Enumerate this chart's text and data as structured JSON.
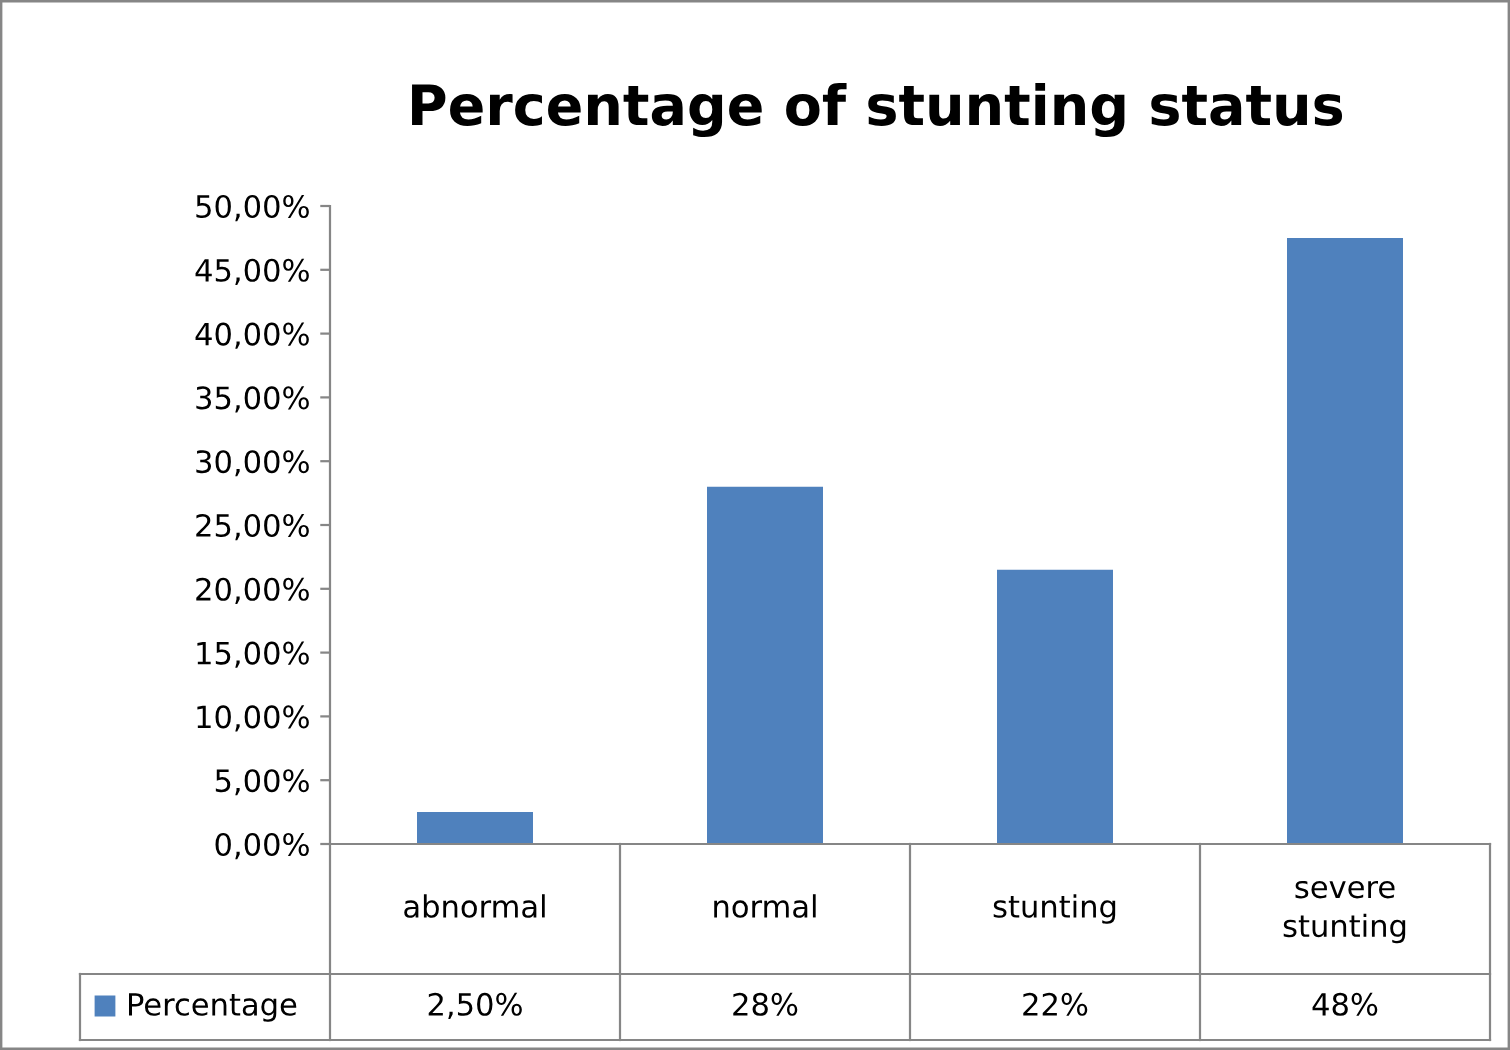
{
  "chart_data": {
    "type": "bar",
    "title": "Percentage of stunting status",
    "categories": [
      "abnormal",
      "normal",
      "stunting",
      "severe\nstunting"
    ],
    "series": [
      {
        "name": "Percentage",
        "color": "#4f81bd",
        "values": [
          2.5,
          28,
          21.5,
          47.5
        ],
        "value_labels": [
          "2,50%",
          "28%",
          "22%",
          "48%"
        ]
      }
    ],
    "ylim": [
      0,
      50
    ],
    "yticks": [
      {
        "value": 0,
        "label": "0,00%"
      },
      {
        "value": 5,
        "label": "5,00%"
      },
      {
        "value": 10,
        "label": "10,00%"
      },
      {
        "value": 15,
        "label": "15,00%"
      },
      {
        "value": 20,
        "label": "20,00%"
      },
      {
        "value": 25,
        "label": "25,00%"
      },
      {
        "value": 30,
        "label": "30,00%"
      },
      {
        "value": 35,
        "label": "35,00%"
      },
      {
        "value": 40,
        "label": "40,00%"
      },
      {
        "value": 45,
        "label": "45,00%"
      },
      {
        "value": 50,
        "label": "50,00%"
      }
    ],
    "grid": false,
    "legend": "bottom"
  }
}
